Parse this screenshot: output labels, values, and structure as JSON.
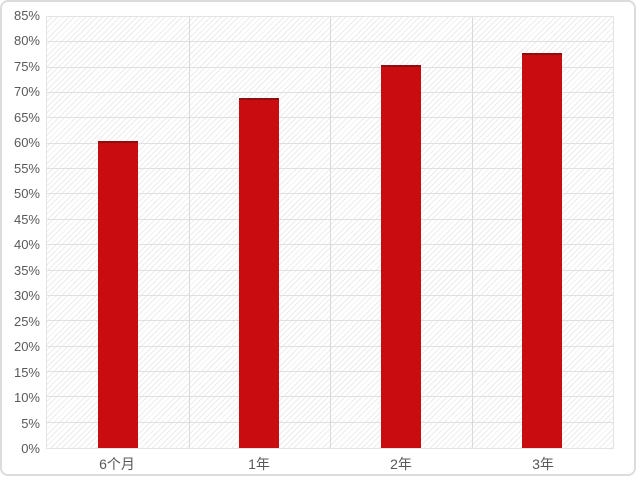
{
  "chart_data": {
    "type": "bar",
    "title": "",
    "xlabel": "",
    "ylabel": "",
    "categories": [
      "6个月",
      "1年",
      "2年",
      "3年"
    ],
    "values": [
      60.5,
      69,
      75.5,
      78
    ],
    "ylim": [
      0,
      85
    ],
    "ytick_step": 5,
    "y_ticks": [
      "0%",
      "5%",
      "10%",
      "15%",
      "20%",
      "25%",
      "30%",
      "35%",
      "40%",
      "45%",
      "50%",
      "55%",
      "60%",
      "65%",
      "70%",
      "75%",
      "80%",
      "85%"
    ],
    "grid": "on",
    "legend": "none",
    "colors": {
      "bar": "#c90c0f",
      "bar_top_edge": "#8e0f10",
      "axis_text": "#595959",
      "gridline": "#e0e0e0",
      "category_separator": "#d9d9d9",
      "hatch_line": "#ececec",
      "card_border": "#dcdcdc"
    }
  }
}
